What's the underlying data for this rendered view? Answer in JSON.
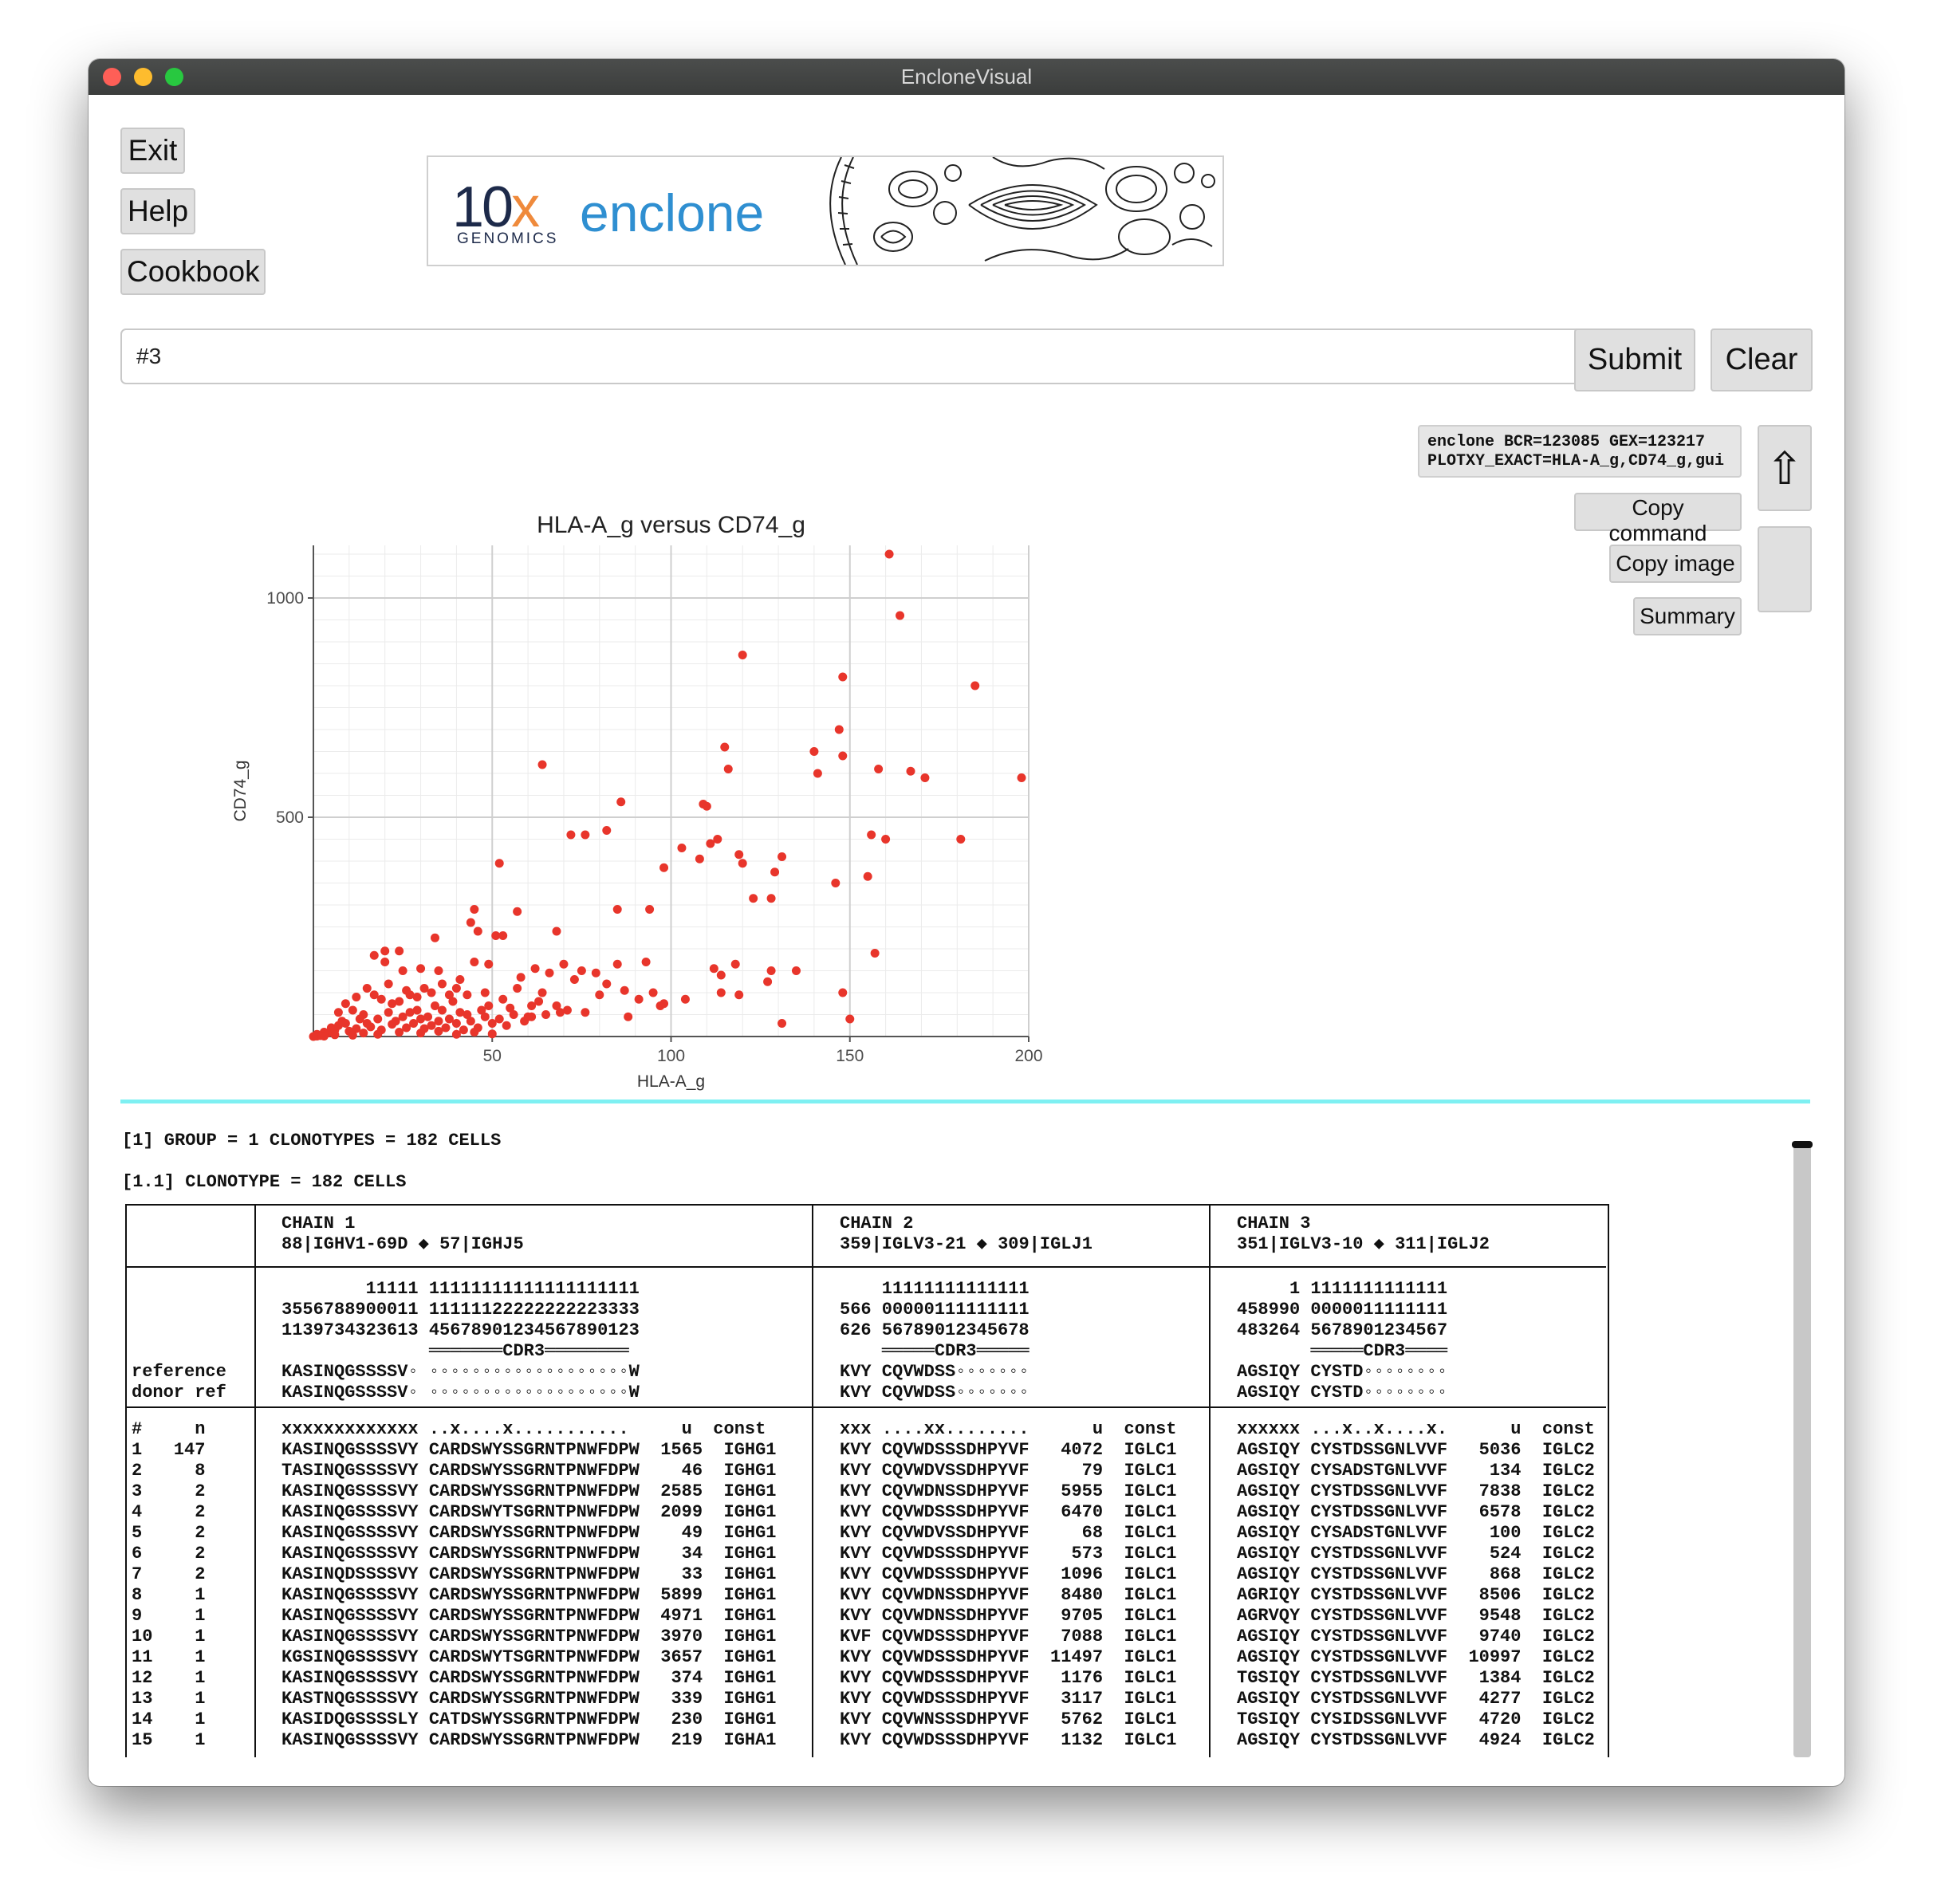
{
  "window": {
    "title": "EncloneVisual"
  },
  "left_buttons": {
    "exit": "Exit",
    "help": "Help",
    "cookbook": "Cookbook"
  },
  "banner": {
    "brand_number": "10",
    "brand_x": "x",
    "brand_sub": "GENOMICS",
    "product": "enclone"
  },
  "command_input": {
    "value": "#3"
  },
  "actions": {
    "submit": "Submit",
    "clear": "Clear"
  },
  "command_display": {
    "text": "enclone BCR=123085 GEX=123217\nPLOTXY_EXACT=HLA-A_g,CD74_g,gui"
  },
  "side_buttons": {
    "copy_command": "Copy command",
    "copy_image": "Copy image",
    "summary": "Summary",
    "up_arrow": "⇧"
  },
  "chart_data": {
    "type": "scatter",
    "title": "HLA-A_g versus CD74_g",
    "xlabel": "HLA-A_g",
    "ylabel": "CD74_g",
    "xlim": [
      0,
      200
    ],
    "ylim": [
      0,
      1120
    ],
    "xticks": [
      50,
      100,
      150,
      200
    ],
    "yticks": [
      500,
      1000
    ],
    "grid": true,
    "point_color": "#e8352b",
    "points": [
      [
        161,
        1100
      ],
      [
        164,
        960
      ],
      [
        120,
        870
      ],
      [
        148,
        820
      ],
      [
        185,
        800
      ],
      [
        198,
        590
      ],
      [
        147,
        700
      ],
      [
        148,
        640
      ],
      [
        158,
        610
      ],
      [
        167,
        605
      ],
      [
        171,
        590
      ],
      [
        140,
        650
      ],
      [
        141,
        600
      ],
      [
        115,
        660
      ],
      [
        116,
        610
      ],
      [
        64,
        620
      ],
      [
        86,
        535
      ],
      [
        109,
        530
      ],
      [
        110,
        525
      ],
      [
        82,
        470
      ],
      [
        72,
        460
      ],
      [
        76,
        460
      ],
      [
        113,
        450
      ],
      [
        111,
        440
      ],
      [
        103,
        430
      ],
      [
        108,
        405
      ],
      [
        119,
        415
      ],
      [
        120,
        395
      ],
      [
        131,
        410
      ],
      [
        129,
        375
      ],
      [
        156,
        460
      ],
      [
        160,
        450
      ],
      [
        181,
        450
      ],
      [
        98,
        385
      ],
      [
        52,
        395
      ],
      [
        155,
        365
      ],
      [
        146,
        350
      ],
      [
        123,
        315
      ],
      [
        128,
        315
      ],
      [
        94,
        290
      ],
      [
        85,
        290
      ],
      [
        57,
        285
      ],
      [
        45,
        290
      ],
      [
        44,
        260
      ],
      [
        46,
        240
      ],
      [
        51,
        230
      ],
      [
        53,
        230
      ],
      [
        68,
        240
      ],
      [
        34,
        225
      ],
      [
        20,
        195
      ],
      [
        24,
        195
      ],
      [
        17,
        185
      ],
      [
        20,
        170
      ],
      [
        25,
        150
      ],
      [
        30,
        155
      ],
      [
        35,
        150
      ],
      [
        45,
        170
      ],
      [
        49,
        165
      ],
      [
        62,
        155
      ],
      [
        70,
        165
      ],
      [
        58,
        135
      ],
      [
        66,
        145
      ],
      [
        75,
        150
      ],
      [
        79,
        145
      ],
      [
        85,
        165
      ],
      [
        93,
        170
      ],
      [
        73,
        130
      ],
      [
        82,
        120
      ],
      [
        112,
        155
      ],
      [
        114,
        140
      ],
      [
        118,
        165
      ],
      [
        128,
        150
      ],
      [
        135,
        150
      ],
      [
        114,
        100
      ],
      [
        119,
        95
      ],
      [
        127,
        125
      ],
      [
        148,
        100
      ],
      [
        157,
        190
      ],
      [
        131,
        30
      ],
      [
        150,
        40
      ],
      [
        98,
        75
      ],
      [
        97,
        70
      ],
      [
        91,
        85
      ],
      [
        87,
        105
      ],
      [
        88,
        45
      ],
      [
        76,
        55
      ],
      [
        71,
        60
      ],
      [
        68,
        70
      ],
      [
        63,
        80
      ],
      [
        55,
        65
      ],
      [
        49,
        70
      ],
      [
        47,
        60
      ],
      [
        43,
        50
      ],
      [
        39,
        80
      ],
      [
        34,
        70
      ],
      [
        29,
        60
      ],
      [
        25,
        45
      ],
      [
        21,
        55
      ],
      [
        18,
        40
      ],
      [
        14,
        50
      ],
      [
        11,
        60
      ],
      [
        8,
        35
      ],
      [
        5,
        20
      ],
      [
        3,
        10
      ],
      [
        1,
        5
      ],
      [
        2,
        2
      ],
      [
        4,
        8
      ],
      [
        6,
        15
      ],
      [
        7,
        25
      ],
      [
        9,
        30
      ],
      [
        10,
        12
      ],
      [
        12,
        18
      ],
      [
        13,
        40
      ],
      [
        15,
        30
      ],
      [
        16,
        22
      ],
      [
        19,
        15
      ],
      [
        22,
        28
      ],
      [
        23,
        35
      ],
      [
        26,
        20
      ],
      [
        27,
        55
      ],
      [
        28,
        30
      ],
      [
        30,
        40
      ],
      [
        31,
        18
      ],
      [
        32,
        45
      ],
      [
        33,
        25
      ],
      [
        35,
        35
      ],
      [
        36,
        60
      ],
      [
        37,
        20
      ],
      [
        38,
        40
      ],
      [
        40,
        30
      ],
      [
        41,
        55
      ],
      [
        42,
        15
      ],
      [
        44,
        35
      ],
      [
        46,
        20
      ],
      [
        48,
        45
      ],
      [
        50,
        30
      ],
      [
        52,
        40
      ],
      [
        54,
        25
      ],
      [
        56,
        50
      ],
      [
        59,
        35
      ],
      [
        61,
        45
      ],
      [
        65,
        50
      ],
      [
        17,
        95
      ],
      [
        19,
        85
      ],
      [
        15,
        110
      ],
      [
        12,
        90
      ],
      [
        21,
        120
      ],
      [
        26,
        105
      ],
      [
        29,
        90
      ],
      [
        33,
        100
      ],
      [
        36,
        120
      ],
      [
        38,
        95
      ],
      [
        41,
        130
      ],
      [
        22,
        75
      ],
      [
        24,
        80
      ],
      [
        9,
        75
      ],
      [
        7,
        55
      ],
      [
        27,
        95
      ],
      [
        31,
        110
      ],
      [
        40,
        110
      ],
      [
        43,
        95
      ],
      [
        48,
        100
      ],
      [
        53,
        85
      ],
      [
        57,
        110
      ],
      [
        64,
        100
      ],
      [
        61,
        70
      ],
      [
        69,
        55
      ],
      [
        80,
        95
      ],
      [
        95,
        100
      ],
      [
        104,
        85
      ],
      [
        60,
        45
      ],
      [
        24,
        10
      ],
      [
        30,
        8
      ],
      [
        35,
        12
      ],
      [
        40,
        5
      ],
      [
        45,
        10
      ],
      [
        50,
        6
      ],
      [
        18,
        5
      ],
      [
        14,
        8
      ],
      [
        11,
        3
      ],
      [
        6,
        4
      ],
      [
        3,
        1
      ],
      [
        1,
        1
      ],
      [
        0,
        0
      ]
    ]
  },
  "output": {
    "group_line": "[1] GROUP = 1 CLONOTYPES = 182 CELLS",
    "clonotype_line": "[1.1] CLONOTYPE = 182 CELLS",
    "chain_headers": [
      "CHAIN 1\n88|IGHV1-69D ◆ 57|IGHJ5",
      "CHAIN 2\n359|IGLV3-21 ◆ 309|IGLJ1",
      "CHAIN 3\n351|IGLV3-10 ◆ 311|IGLJ2"
    ],
    "row_labels": "\n\n\n\nreference\ndonor ref",
    "chain_refs": [
      "        11111 11111111111111111111\n3556788900011 11111122222222223333\n1139734323613 45678901234567890123\n              ═══════CDR3════════\nKASINQGSSSSV◦ ◦◦◦◦◦◦◦◦◦◦◦◦◦◦◦◦◦◦◦W\nKASINQGSSSSV◦ ◦◦◦◦◦◦◦◦◦◦◦◦◦◦◦◦◦◦◦W",
      "    11111111111111\n566 00000111111111\n626 56789012345678\n    ═════CDR3═════\nKVY CQVWDSS◦◦◦◦◦◦◦\nKVY CQVWDSS◦◦◦◦◦◦◦",
      "     1 1111111111111\n458990 0000011111111\n483264 5678901234567\n       ═════CDR3════\nAGSIQY CYSTD◦◦◦◦◦◦◦◦\nAGSIQY CYSTD◦◦◦◦◦◦◦◦"
    ],
    "row_numbers": "#     n\n1   147\n2     8\n3     2\n4     2\n5     2\n6     2\n7     2\n8     1\n9     1\n10    1\n11    1\n12    1\n13    1\n14    1\n15    1",
    "chain_rows": [
      "xxxxxxxxxxxxx ..x....x...........     u  const\nKASINQGSSSSVY CARDSWYSSGRNTPNWFDPW  1565  IGHG1\nTASINQGSSSSVY CARDSWYSSGRNTPNWFDPW    46  IGHG1\nKASINQGSSSSVY CARDSWYSSGRNTPNWFDPW  2585  IGHG1\nKASINQGSSSSVY CARDSWYTSGRNTPNWFDPW  2099  IGHG1\nKASINQGSSSSVY CARDSWYSSGRNTPNWFDPW    49  IGHG1\nKASINQGSSSSVY CARDSWYSSGRNTPNWFDPW    34  IGHG1\nKASINQDSSSSVY CARDSWYSSGRNTPNWFDPW    33  IGHG1\nKASINQGSSSSVY CARDSWYSSGRNTPNWFDPW  5899  IGHG1\nKASINQGSSSSVY CARDSWYSSGRNTPNWFDPW  4971  IGHG1\nKASINQGSSSSVY CARDSWYSSGRNTPNWFDPW  3970  IGHG1\nKGSINQGSSSSVY CARDSWYTSGRNTPNWFDPW  3657  IGHG1\nKASINQGSSSSVY CARDSWYSSGRNTPNWFDPW   374  IGHG1\nKASTNQGSSSSVY CARDSWYSSGRNTPNWFDPW   339  IGHG1\nKASIDQGSSSSLY CATDSWYSSGRNTPNWFDPW   230  IGHG1\nKASINQGSSSSVY CARDSWYSSGRNTPNWFDPW   219  IGHA1",
      "xxx ....xx........      u  const\nKVY CQVWDSSSDHPYVF   4072  IGLC1\nKVY CQVWDVSSDHPYVF     79  IGLC1\nKVY CQVWDNSSDHPYVF   5955  IGLC1\nKVY CQVWDSSSDHPYVF   6470  IGLC1\nKVY CQVWDVSSDHPYVF     68  IGLC1\nKVY CQVWDSSSDHPYVF    573  IGLC1\nKVY CQVWDSSSDHPYVF   1096  IGLC1\nKVY CQVWDNSSDHPYVF   8480  IGLC1\nKVY CQVWDNSSDHPYVF   9705  IGLC1\nKVF CQVWDSSSDHPYVF   7088  IGLC1\nKVY CQVWDSSSDHPYVF  11497  IGLC1\nKVY CQVWDSSSDHPYVF   1176  IGLC1\nKVY CQVWDSSSDHPYVF   3117  IGLC1\nKVY CQVWNSSSDHPYVF   5762  IGLC1\nKVY CQVWDSSSDHPYVF   1132  IGLC1",
      "xxxxxx ...x..x....x.      u  const\nAGSIQY CYSTDSSGNLVVF   5036  IGLC2\nAGSIQY CYSADSTGNLVVF    134  IGLC2\nAGSIQY CYSTDSSGNLVVF   7838  IGLC2\nAGSIQY CYSTDSSGNLVVF   6578  IGLC2\nAGSIQY CYSADSTGNLVVF    100  IGLC2\nAGSIQY CYSTDSSGNLVVF    524  IGLC2\nAGSIQY CYSTDSSGNLVVF    868  IGLC2\nAGRIQY CYSTDSSGNLVVF   8506  IGLC2\nAGRVQY CYSTDSSGNLVVF   9548  IGLC2\nAGSIQY CYSTDSSGNLVVF   9740  IGLC2\nAGSIQY CYSTDSSGNLVVF  10997  IGLC2\nTGSIQY CYSTDSSGNLVVF   1384  IGLC2\nAGSIQY CYSTDSSGNLVVF   4277  IGLC2\nTGSIQY CYSIDSSGNLVVF   4720  IGLC2\nAGSIQY CYSTDSSGNLVVF   4924  IGLC2"
    ]
  }
}
